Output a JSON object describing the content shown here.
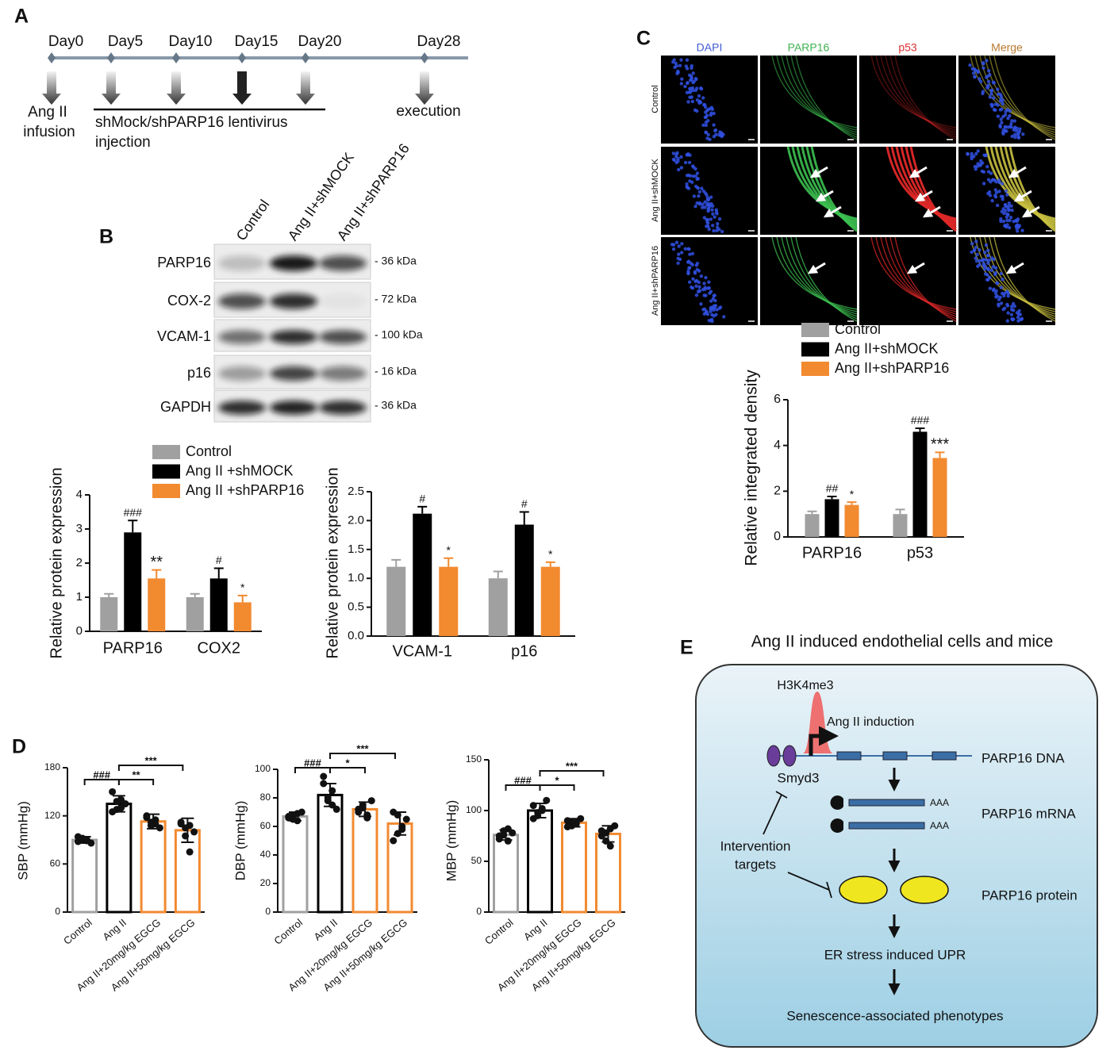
{
  "panel_labels": [
    "A",
    "B",
    "C",
    "D",
    "E"
  ],
  "timeline": {
    "days": [
      "Day0",
      "Day5",
      "Day10",
      "Day15",
      "Day20",
      "Day28"
    ],
    "infusion": [
      "Ang  II",
      "infusion"
    ],
    "injection": [
      "shMock/shPARP16  lentivirus",
      "injection"
    ],
    "end": "execution"
  },
  "blot": {
    "lanes": [
      "Control",
      "Ang II+shMOCK",
      "Ang II+shPARP16"
    ],
    "rows": [
      {
        "name": "PARP16",
        "size": "- 36 kDa"
      },
      {
        "name": "COX-2",
        "size": "- 72 kDa"
      },
      {
        "name": "VCAM-1",
        "size": "- 100 kDa"
      },
      {
        "name": "p16",
        "size": "- 16 kDa"
      },
      {
        "name": "GAPDH",
        "size": "- 36 kDa"
      }
    ]
  },
  "micrographs": {
    "channels": [
      "DAPI",
      "PARP16",
      "p53",
      "Merge"
    ],
    "groups": [
      "Control",
      "Ang II+shMOCK",
      "Ang II+shPARP16"
    ]
  },
  "chart_data": [
    {
      "type": "bar",
      "y_label": "Relative protein expression",
      "categories": [
        "PARP16",
        "COX2"
      ],
      "series": [
        {
          "name": "Control",
          "color": "#a0a0a0",
          "values": [
            1.0,
            1.0
          ],
          "errors": [
            0.1,
            0.1
          ],
          "annotations": [
            null,
            null
          ]
        },
        {
          "name": "Ang II +shMOCK",
          "color": "#000000",
          "values": [
            2.9,
            1.55
          ],
          "errors": [
            0.35,
            0.3
          ],
          "annotations": [
            "###",
            "#"
          ]
        },
        {
          "name": "Ang II +shPARP16",
          "color": "#f28a30",
          "values": [
            1.55,
            0.85
          ],
          "errors": [
            0.25,
            0.2
          ],
          "annotations": [
            "**",
            "*"
          ]
        }
      ],
      "ylim": [
        0,
        4
      ],
      "yticks": [
        0,
        1,
        2,
        3,
        4
      ],
      "legend": "top"
    },
    {
      "type": "bar",
      "y_label": "Relative protein expression",
      "categories": [
        "VCAM-1",
        "p16"
      ],
      "series": [
        {
          "color": "#a0a0a0",
          "values": [
            1.2,
            1.0
          ],
          "errors": [
            0.12,
            0.12
          ],
          "annotations": [
            null,
            null
          ]
        },
        {
          "color": "#000000",
          "values": [
            2.12,
            1.93
          ],
          "errors": [
            0.12,
            0.22
          ],
          "annotations": [
            "#",
            "#"
          ]
        },
        {
          "color": "#f28a30",
          "values": [
            1.2,
            1.2
          ],
          "errors": [
            0.15,
            0.08
          ],
          "annotations": [
            "*",
            "*"
          ]
        }
      ],
      "ylim": [
        0,
        2.5
      ],
      "yticks": [
        {
          "value": 0,
          "label": "0.0"
        },
        0.5,
        {
          "value": 1,
          "label": "1.0"
        },
        1.5,
        {
          "value": 2,
          "label": "2.0"
        },
        2.5
      ]
    },
    {
      "type": "bar",
      "y_label": "Relative integrated density",
      "categories": [
        "PARP16",
        "p53"
      ],
      "series": [
        {
          "name": "Control",
          "color": "#a0a0a0",
          "values": [
            1.0,
            1.0
          ],
          "errors": [
            0.12,
            0.2
          ],
          "annotations": [
            null,
            null
          ]
        },
        {
          "name": "Ang II+shMOCK",
          "color": "#000000",
          "values": [
            1.65,
            4.6
          ],
          "errors": [
            0.12,
            0.15
          ],
          "annotations": [
            "##",
            "###"
          ]
        },
        {
          "name": "Ang II+shPARP16",
          "color": "#f28a30",
          "values": [
            1.4,
            3.45
          ],
          "errors": [
            0.12,
            0.25
          ],
          "annotations": [
            "*",
            "***"
          ]
        }
      ],
      "ylim": [
        0,
        6
      ],
      "yticks": [
        0,
        2,
        4,
        6
      ],
      "legend": "top"
    },
    {
      "type": "dot_bar",
      "y_label": "SBP (mmHg)",
      "categories": [
        "Control",
        "Ang II",
        "Ang II+20mg/kg EGCG",
        "Ang II+50mg/kg EGCG"
      ],
      "colors": [
        "#a0a0a0",
        "#000000",
        "#f28a30",
        "#f28a30"
      ],
      "values": [
        90,
        135,
        113,
        102
      ],
      "errors": [
        4,
        10,
        9,
        15
      ],
      "points": [
        [
          88,
          92,
          90,
          86,
          94,
          91,
          89
        ],
        [
          150,
          128,
          140,
          135,
          125,
          138,
          130
        ],
        [
          120,
          108,
          115,
          105,
          118,
          112,
          110
        ],
        [
          110,
          95,
          75,
          100,
          112,
          105,
          108
        ]
      ],
      "brackets": [
        {
          "groups": [
            0,
            1
          ],
          "label": "###"
        },
        {
          "groups": [
            1,
            2
          ],
          "label": "**"
        },
        {
          "groups": [
            1,
            3
          ],
          "label": "***"
        }
      ],
      "ylim": [
        0,
        180
      ],
      "yticks": [
        0,
        60,
        120,
        180
      ]
    },
    {
      "type": "dot_bar",
      "y_label": "DBP (mmHg)",
      "categories": [
        "Control",
        "Ang II",
        "Ang II+20mg/kg EGCG",
        "Ang II+50mg/kg EGCG"
      ],
      "colors": [
        "#a0a0a0",
        "#000000",
        "#f28a30",
        "#f28a30"
      ],
      "values": [
        67,
        82,
        72,
        62
      ],
      "errors": [
        3,
        8,
        5,
        8
      ],
      "points": [
        [
          66,
          68,
          64,
          70,
          67,
          65,
          69
        ],
        [
          90,
          78,
          85,
          72,
          95,
          80,
          75
        ],
        [
          72,
          75,
          68,
          78,
          70,
          73,
          66
        ],
        [
          70,
          55,
          60,
          65,
          50,
          68,
          58
        ]
      ],
      "brackets": [
        {
          "groups": [
            0,
            1
          ],
          "label": "###"
        },
        {
          "groups": [
            1,
            2
          ],
          "label": "*"
        },
        {
          "groups": [
            1,
            3
          ],
          "label": "***"
        }
      ],
      "ylim": [
        0,
        100
      ],
      "yticks": [
        0,
        20,
        40,
        60,
        80,
        100
      ]
    },
    {
      "type": "dot_bar",
      "y_label": "MBP (mmHg)",
      "categories": [
        "Control",
        "Ang II",
        "Ang II+20mg/kg EGCG",
        "Ang II+50mg/kg EGCG"
      ],
      "colors": [
        "#a0a0a0",
        "#000000",
        "#f28a30",
        "#f28a30"
      ],
      "values": [
        76,
        100,
        88,
        77
      ],
      "errors": [
        5,
        7,
        4,
        8
      ],
      "points": [
        [
          75,
          80,
          70,
          78,
          72,
          76,
          82
        ],
        [
          105,
          95,
          100,
          110,
          92,
          98,
          102
        ],
        [
          90,
          85,
          88,
          92,
          84,
          89,
          87
        ],
        [
          80,
          70,
          65,
          85,
          75,
          78,
          82
        ]
      ],
      "brackets": [
        {
          "groups": [
            0,
            1
          ],
          "label": "###"
        },
        {
          "groups": [
            1,
            2
          ],
          "label": "*"
        },
        {
          "groups": [
            1,
            3
          ],
          "label": "***"
        }
      ],
      "ylim": [
        0,
        150
      ],
      "yticks": [
        0,
        50,
        100,
        150
      ]
    }
  ],
  "diagram": {
    "title": "Ang II induced endothelial cells and mice",
    "mark": "H3K4me3",
    "induction": "Ang II induction",
    "dna": "PARP16 DNA",
    "enzyme": "Smyd3",
    "mrna": "PARP16 mRNA",
    "tail": [
      "AAA",
      "AAA"
    ],
    "intervention": [
      "Intervention",
      "targets"
    ],
    "protein": "PARP16 protein",
    "stress": "ER stress induced UPR",
    "outcome": "Senescence-associated phenotypes"
  }
}
